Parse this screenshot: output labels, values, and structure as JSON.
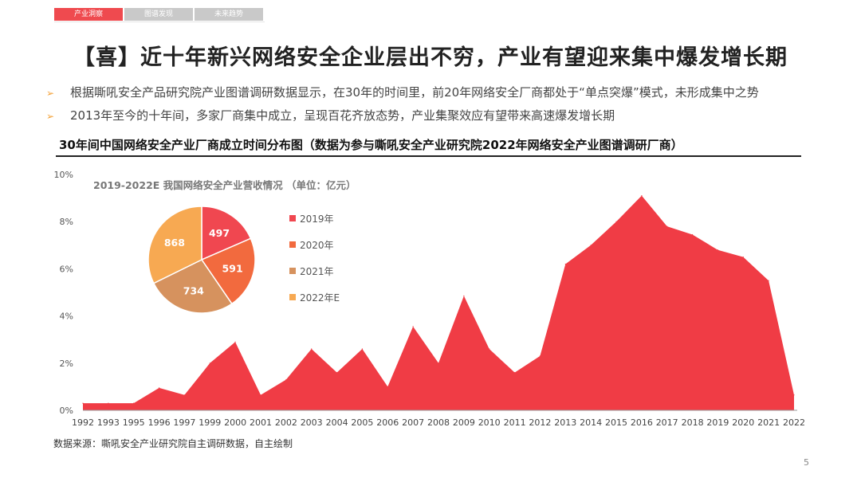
{
  "tabs": [
    {
      "label": "产业洞察",
      "active": true
    },
    {
      "label": "图谱发现",
      "active": false
    },
    {
      "label": "未来趋势",
      "active": false
    }
  ],
  "title": "【喜】近十年新兴网络安全企业层出不穷，产业有望迎来集中爆发增长期",
  "bullets": [
    "根据嘶吼安全产品研究院产业图谱调研数据显示，在30年的时间里，前20年网络安全厂商都处于“单点突爆”模式，未形成集中之势",
    "2013年至今的十年间，多家厂商集中成立，呈现百花齐放态势，产业集聚效应有望带来高速爆发增长期"
  ],
  "bullet_icon": "arrow-icon",
  "chart_title": "30年间中国网络安全产业厂商成立时间分布图（数据为参与嘶吼安全产业研究院2022年网络安全产业图谱调研厂商）",
  "source": "数据来源：嘶吼安全产业研究院自主调研数据，自主绘制",
  "page_number": "5",
  "chart_data": [
    {
      "type": "area",
      "title": "",
      "x": [
        "1992",
        "1993",
        "1995",
        "1996",
        "1997",
        "1999",
        "2000",
        "2001",
        "2002",
        "2003",
        "2004",
        "2005",
        "2006",
        "2007",
        "2008",
        "2009",
        "2010",
        "2011",
        "2012",
        "2013",
        "2014",
        "2015",
        "2016",
        "2017",
        "2018",
        "2019",
        "2020",
        "2021",
        "2022"
      ],
      "values": [
        0.3,
        0.3,
        0.3,
        0.95,
        0.65,
        2.0,
        2.9,
        0.65,
        1.3,
        2.6,
        1.6,
        2.6,
        1.0,
        3.55,
        2.0,
        4.85,
        2.6,
        1.6,
        2.3,
        6.2,
        7.0,
        8.0,
        9.1,
        7.8,
        7.45,
        6.8,
        6.5,
        5.5,
        0.65
      ],
      "yticks": [
        "0%",
        "2%",
        "4%",
        "6%",
        "8%",
        "10%"
      ],
      "ylim": [
        0,
        10
      ],
      "unit": "%",
      "color": "#f03c45"
    },
    {
      "type": "pie",
      "title": "2019-2022E 我国网络安全产业营收情况 （单位：亿元）",
      "categories": [
        "2019年",
        "2020年",
        "2021年",
        "2022年E"
      ],
      "values": [
        497,
        591,
        734,
        868
      ],
      "colors": [
        "#f04750",
        "#f26a3e",
        "#d6925e",
        "#f7a952"
      ],
      "legend": "right"
    }
  ]
}
